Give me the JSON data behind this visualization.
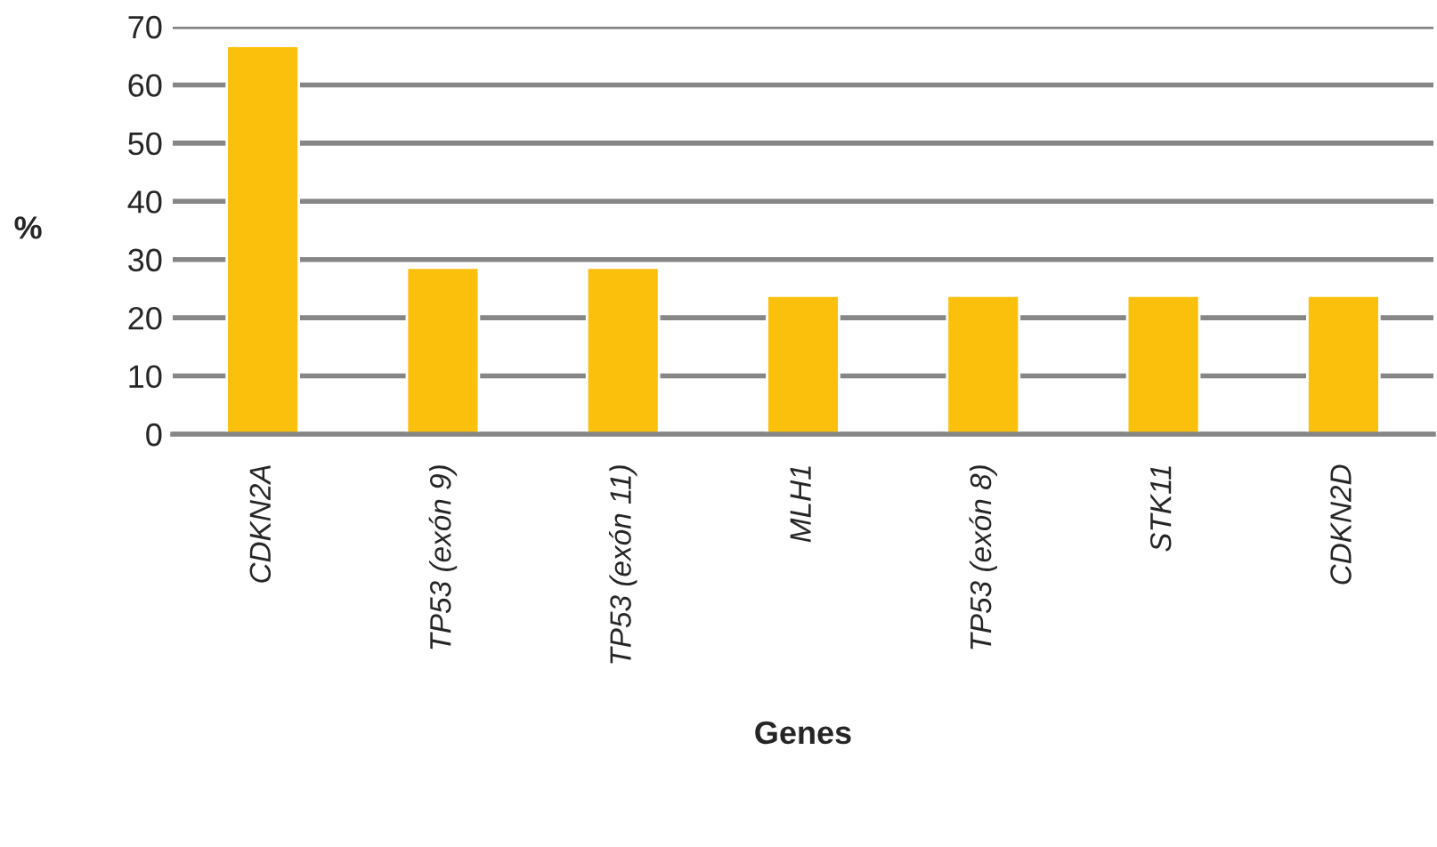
{
  "chart_data": {
    "type": "bar",
    "xlabel": "Genes",
    "ylabel": "%",
    "categories": [
      "CDKN2A",
      "TP53 (exón 9)",
      "TP53 (exón 11)",
      "MLH1",
      "TP53 (exón 8)",
      "STK11",
      "CDKN2D"
    ],
    "values": [
      66.7,
      28.6,
      28.6,
      23.8,
      23.8,
      23.8,
      23.8
    ],
    "color": "#fac00b",
    "ylim": [
      0,
      70
    ],
    "yticks": [
      0,
      10,
      20,
      30,
      40,
      50,
      60,
      70
    ],
    "grid": "y",
    "legend": false
  }
}
